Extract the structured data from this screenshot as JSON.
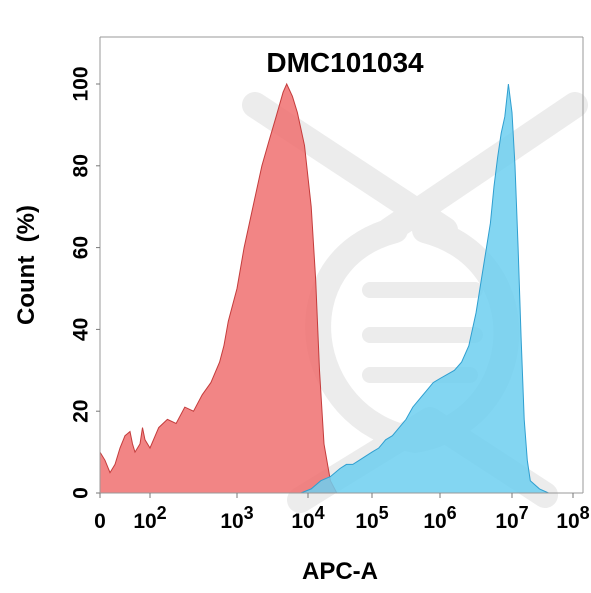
{
  "chart_data": {
    "type": "area",
    "title": "DMC101034",
    "xlabel": "APC-A",
    "ylabel": "Count  (%)",
    "x_scale": "biexponential",
    "y_ticks": [
      "0",
      "20",
      "40",
      "60",
      "80",
      "100"
    ],
    "ylim": [
      0,
      100
    ],
    "x_ticks": [
      {
        "base": "0",
        "exp": ""
      },
      {
        "base": "10",
        "exp": "2"
      },
      {
        "base": "10",
        "exp": "3"
      },
      {
        "base": "10",
        "exp": "4"
      },
      {
        "base": "10",
        "exp": "5"
      },
      {
        "base": "10",
        "exp": "6"
      },
      {
        "base": "10",
        "exp": "7"
      },
      {
        "base": "10",
        "exp": "8"
      }
    ],
    "grid": false,
    "series": [
      {
        "color": "#f07070",
        "stroke": "#c43c3c",
        "points": [
          [
            -0.02,
            0
          ],
          [
            0,
            10
          ],
          [
            0.1,
            8
          ],
          [
            0.2,
            5
          ],
          [
            0.3,
            7
          ],
          [
            0.4,
            11
          ],
          [
            0.5,
            14
          ],
          [
            0.6,
            15
          ],
          [
            0.65,
            12
          ],
          [
            0.7,
            10
          ],
          [
            0.8,
            12
          ],
          [
            0.85,
            16
          ],
          [
            0.9,
            13
          ],
          [
            1.0,
            11
          ],
          [
            1.1,
            16
          ],
          [
            1.2,
            18
          ],
          [
            1.3,
            17
          ],
          [
            1.4,
            21
          ],
          [
            1.5,
            20
          ],
          [
            1.6,
            24
          ],
          [
            1.7,
            27
          ],
          [
            1.8,
            32
          ],
          [
            1.85,
            36
          ],
          [
            1.9,
            42
          ],
          [
            2.0,
            50
          ],
          [
            2.1,
            60
          ],
          [
            2.2,
            68
          ],
          [
            2.3,
            76
          ],
          [
            2.35,
            80
          ],
          [
            2.45,
            86
          ],
          [
            2.55,
            92
          ],
          [
            2.65,
            98
          ],
          [
            2.7,
            100
          ],
          [
            2.78,
            97
          ],
          [
            2.85,
            93
          ],
          [
            2.95,
            85
          ],
          [
            3.05,
            70
          ],
          [
            3.12,
            52
          ],
          [
            3.18,
            30
          ],
          [
            3.25,
            12
          ],
          [
            3.35,
            3
          ],
          [
            3.45,
            0
          ]
        ]
      },
      {
        "color": "#6dcff0",
        "stroke": "#2f9fd0",
        "points": [
          [
            2.9,
            0
          ],
          [
            3.05,
            1
          ],
          [
            3.2,
            3
          ],
          [
            3.35,
            4
          ],
          [
            3.5,
            6
          ],
          [
            3.6,
            7
          ],
          [
            3.7,
            7
          ],
          [
            3.8,
            8
          ],
          [
            3.9,
            9
          ],
          [
            4.0,
            10
          ],
          [
            4.1,
            11
          ],
          [
            4.2,
            13
          ],
          [
            4.3,
            14
          ],
          [
            4.4,
            16
          ],
          [
            4.5,
            18
          ],
          [
            4.6,
            21
          ],
          [
            4.7,
            23
          ],
          [
            4.8,
            25
          ],
          [
            4.9,
            27
          ],
          [
            5.0,
            28
          ],
          [
            5.1,
            29
          ],
          [
            5.2,
            30
          ],
          [
            5.3,
            32
          ],
          [
            5.4,
            36
          ],
          [
            5.5,
            44
          ],
          [
            5.6,
            55
          ],
          [
            5.7,
            66
          ],
          [
            5.75,
            75
          ],
          [
            5.8,
            82
          ],
          [
            5.85,
            88
          ],
          [
            5.9,
            92
          ],
          [
            5.95,
            100
          ],
          [
            6.0,
            93
          ],
          [
            6.05,
            80
          ],
          [
            6.1,
            60
          ],
          [
            6.15,
            38
          ],
          [
            6.2,
            18
          ],
          [
            6.25,
            8
          ],
          [
            6.3,
            3
          ],
          [
            6.45,
            1
          ],
          [
            6.6,
            0
          ]
        ]
      }
    ]
  },
  "watermark": {
    "color": "#ececec"
  }
}
